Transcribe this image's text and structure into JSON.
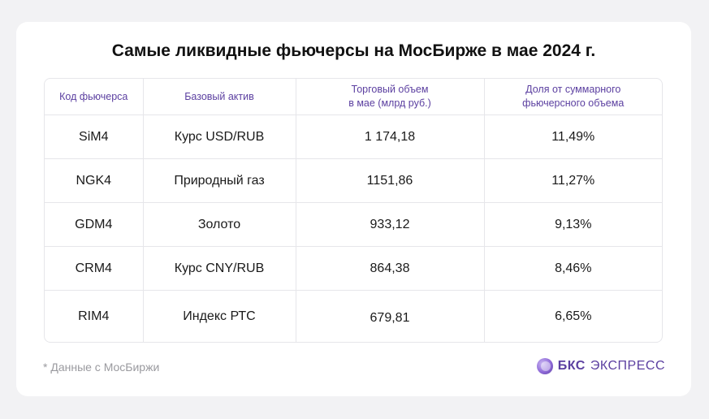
{
  "title": "Самые ликвидные фьючерсы на МосБирже в мае 2024 г.",
  "table": {
    "headers": [
      "Код фьючерса",
      "Базовый актив",
      "Торговый объем\nв мае (млрд руб.)",
      "Доля от суммарного\nфьючерсного объема"
    ],
    "rows": [
      [
        "SiM4",
        "Курс USD/RUB",
        "1 174,18",
        "11,49%"
      ],
      [
        "NGK4",
        "Природный газ",
        "1151,86",
        "11,27%"
      ],
      [
        "GDM4",
        "Золото",
        "933,12",
        "9,13%"
      ],
      [
        "CRM4",
        "Курс CNY/RUB",
        "864,38",
        "8,46%"
      ],
      [
        "RIM4",
        "Индекс РТС",
        "679,81",
        "6,65%"
      ]
    ]
  },
  "footnote": "* Данные с МосБиржи",
  "logo": {
    "part1": "БКС",
    "part2": "ЭКСПРЕСС",
    "icon": "bks-sphere-icon",
    "color": "#5b3fa0"
  }
}
